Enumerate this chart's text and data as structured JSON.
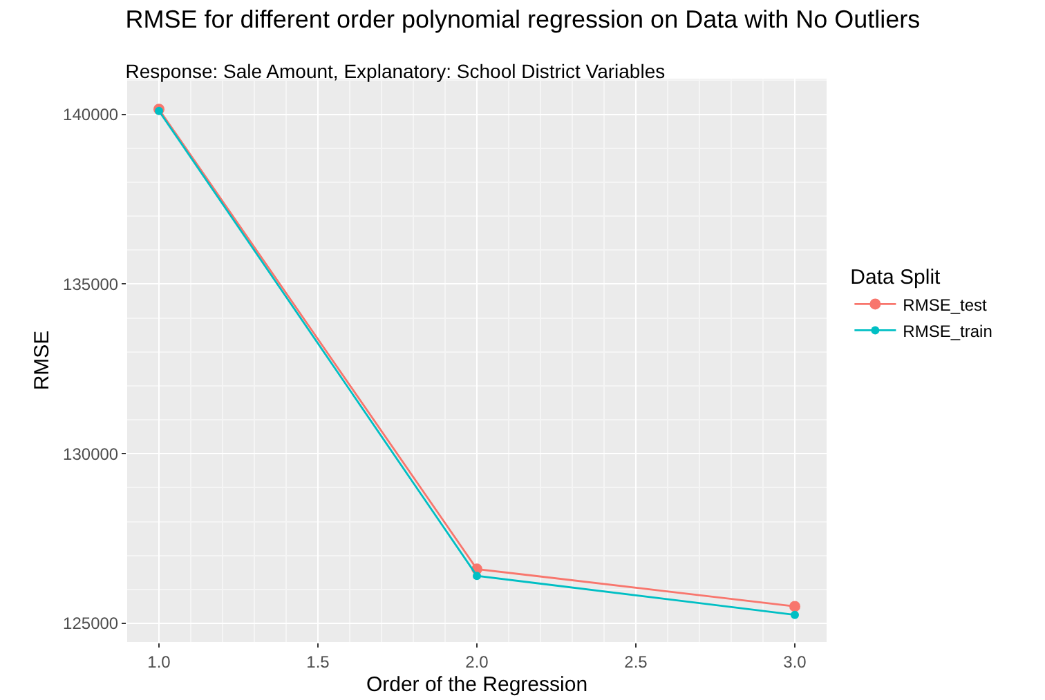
{
  "chart_data": {
    "type": "line",
    "title": "RMSE for different order polynomial regression on Data with No Outliers",
    "subtitle": "Response: Sale Amount, Explanatory: School District Variables",
    "xlabel": "Order of the Regression",
    "ylabel": "RMSE",
    "legend_title": "Data Split",
    "x": [
      1,
      2,
      3
    ],
    "series": [
      {
        "name": "RMSE_test",
        "color": "#f8766d",
        "values": [
          140150,
          126600,
          125500
        ]
      },
      {
        "name": "RMSE_train",
        "color": "#00bfc4",
        "values": [
          140100,
          126400,
          125250
        ]
      }
    ],
    "xlim": [
      0.9,
      3.1
    ],
    "xticks": [
      {
        "value": 1,
        "label": "1.0"
      },
      {
        "value": 1.5,
        "label": "1.5"
      },
      {
        "value": 2,
        "label": "2.0"
      },
      {
        "value": 2.5,
        "label": "2.5"
      },
      {
        "value": 3,
        "label": "3.0"
      }
    ],
    "ylim": [
      124450,
      141050
    ],
    "yticks": [
      125000,
      130000,
      135000,
      140000
    ],
    "grid": true,
    "legend": "right",
    "marker": "circle",
    "line_style": "solid"
  }
}
